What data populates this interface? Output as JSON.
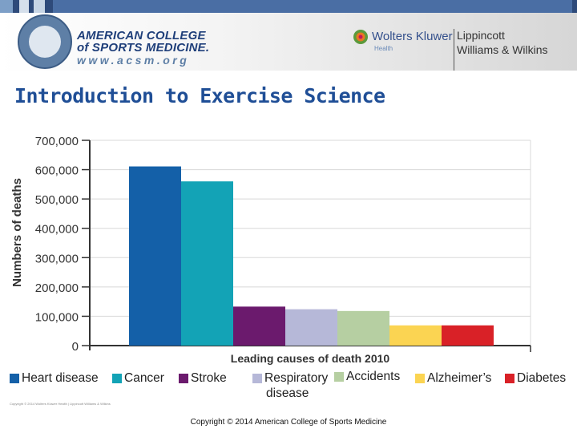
{
  "top_strip": {
    "colors": [
      "#7d9fc7",
      "#2e4a7a",
      "#d5dfeb",
      "#2e4a7a",
      "#c7d5e5",
      "#2e4a7a",
      "#4a6ea4",
      "#2e4a7a"
    ]
  },
  "header": {
    "acsm": {
      "line1": "AMERICAN COLLEGE",
      "line2": "of SPORTS MEDICINE.",
      "url": "www.acsm.org",
      "seal_icon": "acsm-seal-icon"
    },
    "publisher": {
      "name": "Wolters Kluwer",
      "sub": "Health",
      "lww_line1": "Lippincott",
      "lww_line2": "Williams & Wilkins",
      "logo_icon": "wolters-kluwer-logo-icon"
    }
  },
  "slide": {
    "title": "Introduction to Exercise Science",
    "fine_print": "Copyright © 2014 Wolters Kluwer Health | Lippincott Williams & Wilkins",
    "copyright": "Copyright © 2014 American College of Sports Medicine"
  },
  "chart_data": {
    "type": "bar",
    "title": "",
    "xlabel": "Leading causes of death 2010",
    "ylabel": "Numbers of deaths",
    "ylim": [
      0,
      700000
    ],
    "yticks": [
      0,
      100000,
      200000,
      300000,
      400000,
      500000,
      600000,
      700000
    ],
    "ytick_labels": [
      "0",
      "100,000",
      "200,000",
      "300,000",
      "400,000",
      "500,000",
      "600,000",
      "700,000"
    ],
    "grid": true,
    "legend_position": "bottom",
    "categories": [
      "Heart disease",
      "Cancer",
      "Stroke",
      "Respiratory disease",
      "Accidents",
      "Alzheimer's",
      "Diabetes"
    ],
    "legend_labels": [
      "Heart disease",
      "Cancer",
      "Stroke",
      "Respiratory\ndisease",
      "Accidents",
      "Alzheimer’s",
      "Diabetes"
    ],
    "values": [
      611000,
      560000,
      133000,
      124000,
      118000,
      69000,
      69000
    ],
    "colors": [
      "#1460a8",
      "#13a3b6",
      "#6b1a6d",
      "#b6b8d8",
      "#b6cfa2",
      "#fbd452",
      "#d92127"
    ]
  }
}
